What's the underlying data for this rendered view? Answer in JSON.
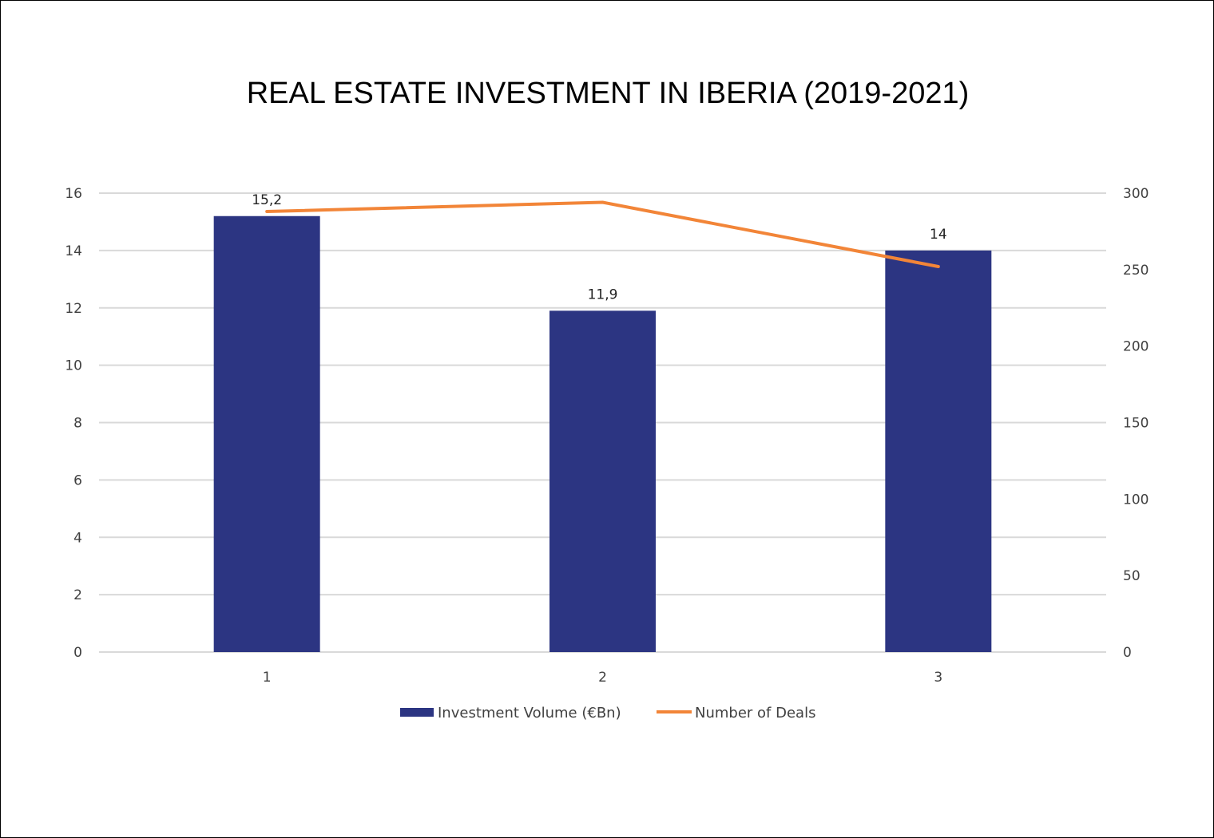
{
  "chart_data": {
    "type": "bar+line",
    "title": "REAL ESTATE INVESTMENT IN IBERIA (2019-2021)",
    "categories": [
      "1",
      "2",
      "3"
    ],
    "series": [
      {
        "name": "Investment Volume (€Bn)",
        "type": "bar",
        "axis": "left",
        "values": [
          15.2,
          11.9,
          14
        ],
        "data_labels": [
          "15,2",
          "11,9",
          "14"
        ],
        "color": "#2C3582"
      },
      {
        "name": "Number of Deals",
        "type": "line",
        "axis": "right",
        "values": [
          288,
          294,
          252
        ],
        "color": "#F28538"
      }
    ],
    "y_left": {
      "lim": [
        0,
        16
      ],
      "ticks": [
        "0",
        "2",
        "4",
        "6",
        "8",
        "10",
        "12",
        "14",
        "16"
      ]
    },
    "y_right": {
      "lim": [
        0,
        300
      ],
      "ticks": [
        "0",
        "50",
        "100",
        "150",
        "200",
        "250",
        "300"
      ]
    },
    "grid": true,
    "legend_position": "bottom"
  }
}
